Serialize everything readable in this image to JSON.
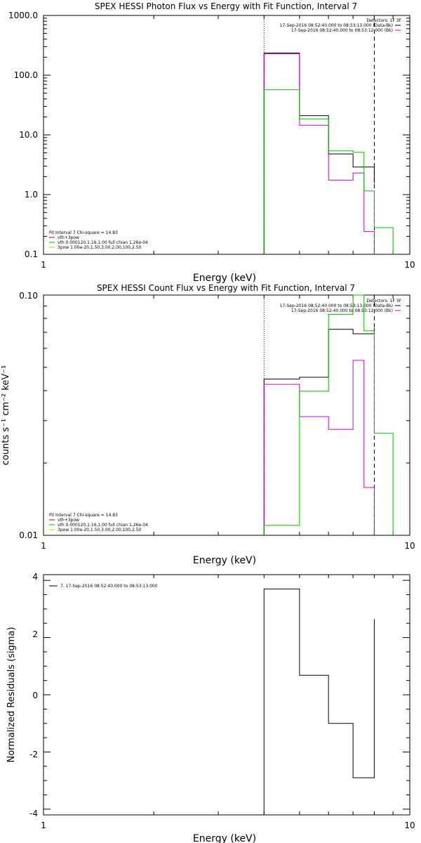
{
  "chart_data": [
    {
      "type": "line",
      "title": "SPEX HESSI Photon Flux vs Energy with Fit Function, Interval 7",
      "xlabel": "Energy (keV)",
      "ylabel": "",
      "xscale": "log",
      "yscale": "log",
      "xlim": [
        1,
        10
      ],
      "ylim": [
        0.1,
        1000
      ],
      "x_ticks": [
        "1",
        "10"
      ],
      "y_ticks": [
        "0.1",
        "1.0",
        "10.0",
        "100.0",
        "1000.0"
      ],
      "legend_top": {
        "header": "Detectors: 1F 3F",
        "entries": [
          {
            "text": "17-Sep-2016 08:52:40.000 to 08:53:13.000 (Data-Bk)",
            "color": "#000000"
          },
          {
            "text": "17-Sep-2016 08:52:40.000 to 08:53:12.000 (Bk)",
            "color": "#cc00cc"
          }
        ]
      },
      "legend_bottom": {
        "header": "Fit Interval 7   Chi-square = 14.83",
        "entries": [
          {
            "text": "vth+3pow",
            "color": "#cc0000"
          },
          {
            "text": "vth 0.000120,1.16,1.00  full chian 1.26e-04",
            "color": "#00bb00"
          },
          {
            "text": "3pow  1.00e-20,1.50,3.00,2.00,100,2.50",
            "color": "#cccc00"
          }
        ]
      },
      "vlines": [
        {
          "x": 4.0,
          "style": "dotted"
        },
        {
          "x": 8.0,
          "style": "dashed"
        }
      ],
      "series": [
        {
          "color": "#000000",
          "edges": [
            4.0,
            5.0,
            6.0,
            7.0,
            8.0
          ],
          "values": [
            235,
            21,
            4.8,
            2.9,
            1.55
          ]
        },
        {
          "color": "#cc00cc",
          "edges": [
            4.0,
            5.0,
            6.0,
            7.0,
            7.5,
            8.0
          ],
          "values": [
            228,
            14.5,
            1.75,
            2.3,
            0.24
          ]
        },
        {
          "color": "#00bb00",
          "edges": [
            4.0,
            5.0,
            6.0,
            7.0,
            7.5,
            8.0,
            9.0
          ],
          "values": [
            57,
            18.5,
            5.4,
            5.1,
            1.15,
            0.28
          ]
        }
      ]
    },
    {
      "type": "line",
      "title": "SPEX HESSI Count Flux vs Energy with Fit Function, Interval 7",
      "xlabel": "Energy (keV)",
      "ylabel": "counts s⁻¹ cm⁻² keV⁻¹",
      "xscale": "log",
      "yscale": "log",
      "xlim": [
        1,
        10
      ],
      "ylim": [
        0.01,
        0.1
      ],
      "x_ticks": [
        "1",
        "10"
      ],
      "y_ticks": [
        "0.01",
        "0.10"
      ],
      "legend_top": {
        "header": "Detectors: 1F 3F",
        "entries": [
          {
            "text": "17-Sep-2016 08:52:40.000 to 08:53:13.000 (Data-Bk)",
            "color": "#000000"
          },
          {
            "text": "17-Sep-2016 08:52:40.000 to 08:53:12.000 (Bk)",
            "color": "#cc00cc"
          }
        ]
      },
      "legend_bottom": {
        "header": "Fit Interval 7   Chi-square = 14.83",
        "entries": [
          {
            "text": "vth+3pow",
            "color": "#cc0000"
          },
          {
            "text": "vth 0.000120,1.16,1.00  full chian 1.26e-04",
            "color": "#00bb00"
          },
          {
            "text": "3pow  1.00e-20,1.50,3.00,2.00,100,2.50",
            "color": "#cccc00"
          }
        ]
      },
      "vlines": [
        {
          "x": 4.0,
          "style": "dotted"
        },
        {
          "x": 8.0,
          "style": "dashed"
        }
      ],
      "series": [
        {
          "color": "#000000",
          "edges": [
            4.0,
            5.0,
            6.0,
            7.0,
            8.0
          ],
          "values": [
            0.0447,
            0.0455,
            0.072,
            0.069,
            0.073
          ]
        },
        {
          "color": "#cc00cc",
          "edges": [
            4.0,
            5.0,
            6.0,
            7.0,
            7.5,
            8.0
          ],
          "values": [
            0.0425,
            0.0312,
            0.0276,
            0.0535,
            0.0158
          ]
        },
        {
          "color": "#00bb00",
          "edges": [
            4.0,
            5.0,
            6.0,
            7.0,
            7.5,
            8.0,
            9.0
          ],
          "values": [
            0.011,
            0.0398,
            0.083,
            0.1,
            0.071,
            0.0266
          ]
        }
      ]
    },
    {
      "type": "line",
      "title": "",
      "xlabel": "Energy (keV)",
      "ylabel": "Normalized Residuals (sigma)",
      "xscale": "log",
      "yscale": "linear",
      "xlim": [
        1,
        10
      ],
      "ylim": [
        -4.2,
        4.2
      ],
      "x_ticks": [
        "1",
        "10"
      ],
      "y_ticks": [
        "-4",
        "-2",
        "0",
        "2",
        "4"
      ],
      "legend_note": "7. 17-Sep-2016 08:52:40.000 to 08:53:13.000",
      "series": [
        {
          "color": "#000000",
          "edges": [
            4.0,
            5.0,
            6.0,
            7.0,
            8.0
          ],
          "values": [
            3.7,
            0.68,
            -1.0,
            -2.9,
            2.65
          ]
        }
      ]
    }
  ]
}
